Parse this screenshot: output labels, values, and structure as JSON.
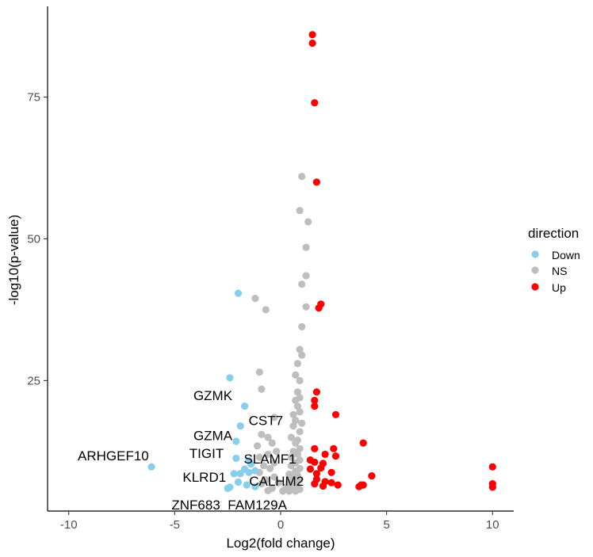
{
  "chart_data": {
    "type": "scatter",
    "title": "",
    "xlabel": "Log2(fold change)",
    "ylabel": "-log10(p-value)",
    "xlim": [
      -11,
      11
    ],
    "ylim": [
      2,
      91
    ],
    "x_ticks": [
      -10,
      -5,
      0,
      5,
      10
    ],
    "y_ticks": [
      25,
      50,
      75
    ],
    "x_tick_labels": [
      "-10",
      "-5",
      "0",
      "5",
      "10"
    ],
    "y_tick_labels": [
      "25",
      "50",
      "75"
    ],
    "grid": false,
    "legend": {
      "title": "direction",
      "position": "right",
      "entries": [
        {
          "label": "Down",
          "color": "#87CEEB"
        },
        {
          "label": "NS",
          "color": "#BEBEBE"
        },
        {
          "label": "Up",
          "color": "#FF0000"
        }
      ]
    },
    "series": [
      {
        "name": "Down",
        "color": "#87CEEB",
        "points": [
          [
            -6.1,
            9.8
          ],
          [
            -2.4,
            25.5
          ],
          [
            -2.0,
            40.4
          ],
          [
            -1.7,
            20.5
          ],
          [
            -1.9,
            17.0
          ],
          [
            -2.1,
            14.3
          ],
          [
            -2.1,
            11.3
          ],
          [
            -1.5,
            10.9
          ],
          [
            -1.4,
            10.3
          ],
          [
            -1.7,
            9.4
          ],
          [
            -1.5,
            8.8
          ],
          [
            -1.9,
            8.6
          ],
          [
            -2.2,
            8.6
          ],
          [
            -1.2,
            9.1
          ],
          [
            -2.0,
            7.1
          ],
          [
            -1.6,
            6.6
          ],
          [
            -2.4,
            6.2
          ],
          [
            -1.2,
            6.3
          ],
          [
            -2.5,
            6.0
          ]
        ]
      },
      {
        "name": "NS",
        "color": "#BEBEBE",
        "points": [
          [
            1.0,
            61.0
          ],
          [
            0.9,
            55.0
          ],
          [
            1.3,
            53.0
          ],
          [
            1.2,
            48.5
          ],
          [
            1.2,
            43.5
          ],
          [
            1.0,
            42.0
          ],
          [
            -1.2,
            39.5
          ],
          [
            -0.7,
            37.5
          ],
          [
            1.2,
            38.0
          ],
          [
            1.0,
            34.5
          ],
          [
            0.9,
            30.5
          ],
          [
            1.0,
            29.5
          ],
          [
            0.8,
            28.0
          ],
          [
            -1.0,
            26.5
          ],
          [
            0.7,
            26.0
          ],
          [
            0.9,
            25.0
          ],
          [
            -0.9,
            23.5
          ],
          [
            0.8,
            23.0
          ],
          [
            0.9,
            22.0
          ],
          [
            0.7,
            21.5
          ],
          [
            0.8,
            20.5
          ],
          [
            0.9,
            19.5
          ],
          [
            0.6,
            19.0
          ],
          [
            -0.3,
            18.5
          ],
          [
            0.7,
            18.0
          ],
          [
            1.0,
            17.5
          ],
          [
            0.6,
            17.0
          ],
          [
            0.9,
            16.0
          ],
          [
            -0.9,
            15.5
          ],
          [
            -0.6,
            15.0
          ],
          [
            0.5,
            15.0
          ],
          [
            0.8,
            14.5
          ],
          [
            -0.4,
            14.0
          ],
          [
            0.7,
            14.0
          ],
          [
            -1.1,
            13.5
          ],
          [
            0.9,
            13.0
          ],
          [
            -0.2,
            12.5
          ],
          [
            0.6,
            12.5
          ],
          [
            -0.6,
            12.0
          ],
          [
            0.8,
            12.0
          ],
          [
            -1.0,
            11.5
          ],
          [
            0.5,
            11.5
          ],
          [
            0.9,
            11.0
          ],
          [
            -0.3,
            10.5
          ],
          [
            0.7,
            10.5
          ],
          [
            -0.8,
            10.0
          ],
          [
            0.5,
            10.0
          ],
          [
            0.9,
            9.5
          ],
          [
            -0.5,
            9.5
          ],
          [
            0.7,
            9.0
          ],
          [
            -1.0,
            8.8
          ],
          [
            0.4,
            8.5
          ],
          [
            0.8,
            8.3
          ],
          [
            -0.3,
            8.0
          ],
          [
            0.6,
            8.0
          ],
          [
            -0.7,
            7.5
          ],
          [
            0.9,
            7.5
          ],
          [
            0.4,
            7.2
          ],
          [
            -0.1,
            7.0
          ],
          [
            0.7,
            7.0
          ],
          [
            -0.9,
            6.8
          ],
          [
            0.5,
            6.5
          ],
          [
            0.3,
            6.3
          ],
          [
            0.8,
            6.2
          ],
          [
            -0.4,
            6.0
          ],
          [
            0.6,
            6.0
          ],
          [
            0.2,
            5.8
          ],
          [
            0.9,
            5.8
          ],
          [
            -0.6,
            5.6
          ],
          [
            0.4,
            5.5
          ],
          [
            0.1,
            5.5
          ],
          [
            0.7,
            5.5
          ]
        ]
      },
      {
        "name": "Up",
        "color": "#FF0000",
        "points": [
          [
            1.5,
            86.0
          ],
          [
            1.5,
            84.5
          ],
          [
            1.6,
            74.0
          ],
          [
            1.7,
            60.0
          ],
          [
            1.9,
            38.5
          ],
          [
            1.8,
            37.8
          ],
          [
            1.7,
            23.0
          ],
          [
            1.6,
            21.5
          ],
          [
            1.6,
            20.5
          ],
          [
            2.6,
            19.0
          ],
          [
            3.9,
            14.0
          ],
          [
            1.6,
            13.0
          ],
          [
            2.5,
            13.0
          ],
          [
            2.1,
            12.0
          ],
          [
            2.6,
            11.7
          ],
          [
            1.4,
            11.0
          ],
          [
            1.6,
            10.6
          ],
          [
            2.0,
            10.4
          ],
          [
            1.9,
            9.6
          ],
          [
            1.4,
            9.4
          ],
          [
            2.4,
            8.8
          ],
          [
            1.7,
            8.6
          ],
          [
            4.3,
            8.2
          ],
          [
            1.7,
            7.6
          ],
          [
            2.1,
            7.2
          ],
          [
            2.4,
            7.0
          ],
          [
            1.6,
            6.8
          ],
          [
            2.7,
            6.6
          ],
          [
            3.8,
            6.6
          ],
          [
            3.9,
            6.6
          ],
          [
            2.0,
            6.4
          ],
          [
            3.7,
            6.3
          ],
          [
            10.0,
            9.8
          ],
          [
            10.0,
            6.8
          ],
          [
            10.0,
            6.2
          ]
        ]
      }
    ],
    "annotations": [
      {
        "text": "GZMK",
        "x": -3.2,
        "y": 22.2
      },
      {
        "text": "CST7",
        "x": -0.7,
        "y": 17.8
      },
      {
        "text": "GZMA",
        "x": -3.2,
        "y": 15.1
      },
      {
        "text": "ARHGEF10",
        "x": -7.9,
        "y": 11.6
      },
      {
        "text": "TIGIT",
        "x": -3.5,
        "y": 12.0
      },
      {
        "text": "SLAMF1",
        "x": -0.5,
        "y": 11.0
      },
      {
        "text": "KLRD1",
        "x": -3.6,
        "y": 7.8
      },
      {
        "text": "CALHM2",
        "x": -0.2,
        "y": 7.1
      },
      {
        "text": "ZNF683",
        "x": -4.0,
        "y": 2.9
      },
      {
        "text": "FAM129A",
        "x": -1.1,
        "y": 2.9
      }
    ]
  }
}
